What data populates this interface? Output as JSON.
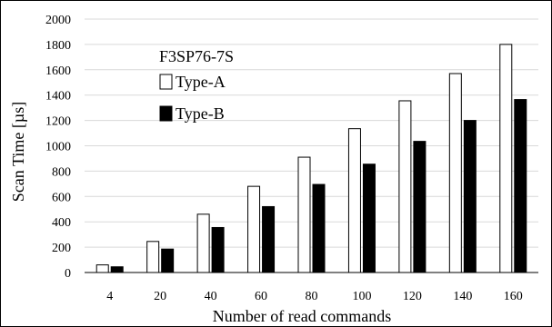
{
  "chart_data": {
    "type": "bar",
    "title": "F3SP76-7S",
    "xlabel": "Number of read commands",
    "ylabel": "Scan Time [µs]",
    "categories": [
      "4",
      "20",
      "40",
      "60",
      "80",
      "100",
      "120",
      "140",
      "160"
    ],
    "ylim": [
      0,
      2000
    ],
    "yticks": [
      "0",
      "200",
      "400",
      "600",
      "800",
      "1000",
      "1200",
      "1400",
      "1600",
      "1800",
      "2000"
    ],
    "grid": "horizontal",
    "legend_position": "top-left",
    "series": [
      {
        "name": "Type-A",
        "fill": "#ffffff",
        "stroke": "#000000",
        "values": [
          60,
          245,
          460,
          680,
          910,
          1135,
          1355,
          1570,
          1800
        ]
      },
      {
        "name": "Type-B",
        "fill": "#000000",
        "stroke": "#000000",
        "values": [
          45,
          185,
          355,
          520,
          695,
          855,
          1035,
          1200,
          1365
        ]
      }
    ]
  }
}
